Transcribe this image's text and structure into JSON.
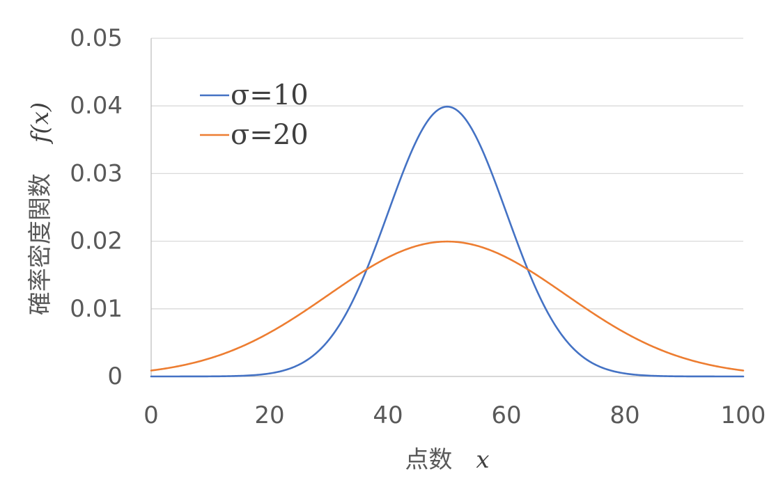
{
  "chart_data": {
    "type": "line",
    "title": "",
    "xlabel": "点数",
    "xlabel_var": "x",
    "ylabel": "確率密度関数",
    "ylabel_var": "f(x)",
    "xlim": [
      0,
      100
    ],
    "ylim": [
      0,
      0.05
    ],
    "x_ticks": [
      "0",
      "20",
      "40",
      "60",
      "80",
      "100"
    ],
    "y_ticks": [
      "0",
      "0.01",
      "0.02",
      "0.03",
      "0.04",
      "0.05"
    ],
    "grid": true,
    "legend_position": "top-left",
    "series": [
      {
        "name": "σ=10",
        "color": "#4472c4",
        "distribution": "normal",
        "mean": 50,
        "sigma": 10,
        "x": [
          0,
          10,
          20,
          25,
          30,
          35,
          40,
          45,
          50,
          55,
          60,
          65,
          70,
          75,
          80,
          90,
          100
        ],
        "values": [
          0.0,
          0.0,
          0.0004,
          0.0018,
          0.0054,
          0.013,
          0.0242,
          0.0352,
          0.0399,
          0.0352,
          0.0242,
          0.013,
          0.0054,
          0.0018,
          0.0004,
          0.0,
          0.0
        ]
      },
      {
        "name": "σ=20",
        "color": "#ed7d31",
        "distribution": "normal",
        "mean": 50,
        "sigma": 20,
        "x": [
          0,
          10,
          20,
          30,
          40,
          50,
          60,
          70,
          80,
          90,
          100
        ],
        "values": [
          0.0009,
          0.0027,
          0.0065,
          0.0121,
          0.0176,
          0.0199,
          0.0176,
          0.0121,
          0.0065,
          0.0027,
          0.0009
        ]
      }
    ]
  }
}
